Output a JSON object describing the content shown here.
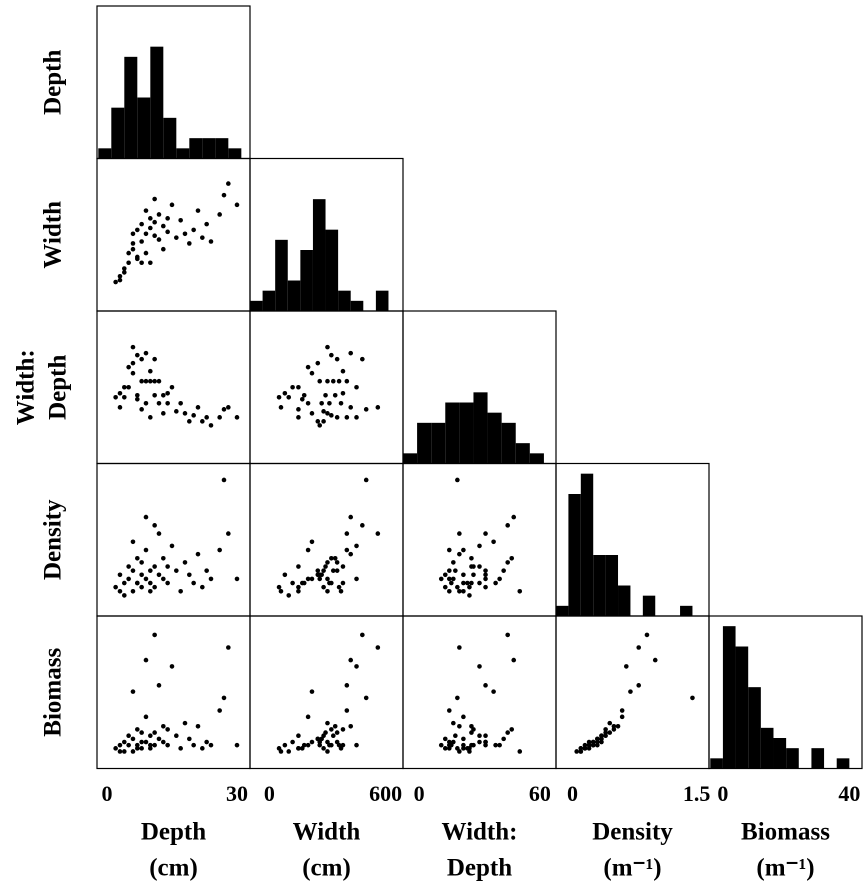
{
  "chart_data": {
    "type": "scatter_matrix",
    "hist_ylim": [
      0,
      15
    ],
    "variables": [
      {
        "row_label": [
          "Depth"
        ],
        "col_label": [
          "Depth",
          "(cm)"
        ],
        "lim": [
          -2.3,
          33
        ],
        "ticks": [
          0,
          30
        ],
        "hist": {
          "bins": [
            -2,
            1,
            4,
            7,
            10,
            13,
            16,
            19,
            22,
            25,
            28,
            31
          ],
          "counts": [
            1,
            5,
            10,
            6,
            11,
            4,
            1,
            2,
            2,
            2,
            1
          ]
        }
      },
      {
        "row_label": [
          "Width"
        ],
        "col_label": [
          "Width",
          "(cm)"
        ],
        "lim": [
          -100,
          690
        ],
        "ticks": [
          0,
          600
        ],
        "hist": {
          "bins": [
            -100,
            -35,
            30,
            95,
            160,
            225,
            290,
            355,
            420,
            485,
            550,
            615
          ],
          "counts": [
            1,
            2,
            7,
            3,
            6,
            11,
            8,
            2,
            1,
            0,
            2
          ]
        }
      },
      {
        "row_label": [
          "Width:",
          "Depth"
        ],
        "col_label": [
          "Width:",
          "Depth"
        ],
        "lim": [
          -8,
          68
        ],
        "ticks": [
          0,
          60
        ],
        "hist": {
          "bins": [
            -8,
            -1,
            6,
            13,
            20,
            27,
            34,
            41,
            48,
            55,
            62
          ],
          "counts": [
            1,
            4,
            4,
            6,
            6,
            7,
            5,
            4,
            2,
            1
          ]
        }
      },
      {
        "row_label": [
          "Density"
        ],
        "col_label": [
          "Density",
          "(m⁻¹)"
        ],
        "lim": [
          -0.2,
          1.65
        ],
        "ticks": [
          0,
          1.5
        ],
        "hist": {
          "bins": [
            -0.2,
            -0.05,
            0.1,
            0.25,
            0.4,
            0.55,
            0.7,
            0.85,
            1.0,
            1.15,
            1.3,
            1.45
          ],
          "counts": [
            1,
            12,
            14,
            6,
            6,
            3,
            0,
            2,
            0,
            0,
            1
          ]
        }
      },
      {
        "row_label": [
          "Biomass"
        ],
        "col_label": [
          "Biomass",
          "(m⁻¹)"
        ],
        "lim": [
          -4.4,
          44
        ],
        "ticks": [
          0,
          40
        ],
        "hist": {
          "bins": [
            -4,
            0,
            4,
            8,
            12,
            16,
            20,
            24,
            28,
            32,
            36,
            40
          ],
          "counts": [
            1,
            14,
            12,
            8,
            4,
            3,
            2,
            0,
            2,
            0,
            1
          ]
        }
      }
    ],
    "observations": [
      [
        2,
        50,
        25,
        0.15,
        2
      ],
      [
        3,
        80,
        27,
        0.3,
        3
      ],
      [
        4,
        120,
        30,
        0.2,
        4
      ],
      [
        5,
        200,
        40,
        0.25,
        3
      ],
      [
        5,
        150,
        30,
        0.4,
        6
      ],
      [
        6,
        300,
        50,
        0.1,
        1
      ],
      [
        6,
        250,
        42,
        0.35,
        5
      ],
      [
        7,
        180,
        26,
        0.2,
        3
      ],
      [
        7,
        320,
        46,
        0.5,
        8
      ],
      [
        8,
        150,
        19,
        0.15,
        2
      ],
      [
        8,
        260,
        33,
        0.3,
        4
      ],
      [
        8,
        350,
        44,
        0.45,
        7
      ],
      [
        9,
        300,
        33,
        0.25,
        4
      ],
      [
        9,
        200,
        22,
        0.6,
        12
      ],
      [
        10,
        380,
        38,
        0.2,
        3
      ],
      [
        10,
        330,
        33,
        0.35,
        6
      ],
      [
        10,
        150,
        15,
        0.1,
        2
      ],
      [
        11,
        290,
        26,
        0.4,
        7
      ],
      [
        11,
        360,
        33,
        0.15,
        3
      ],
      [
        12,
        270,
        22,
        0.3,
        5
      ],
      [
        12,
        400,
        33,
        0.8,
        22
      ],
      [
        13,
        340,
        26,
        0.5,
        9
      ],
      [
        13,
        220,
        17,
        0.25,
        4
      ],
      [
        14,
        310,
        22,
        0.2,
        3
      ],
      [
        15,
        450,
        30,
        0.65,
        28
      ],
      [
        16,
        280,
        18,
        0.35,
        6
      ],
      [
        17,
        370,
        22,
        0.1,
        2
      ],
      [
        18,
        300,
        17,
        0.45,
        10
      ],
      [
        19,
        250,
        13,
        0.3,
        5
      ],
      [
        20,
        320,
        16,
        0.2,
        3
      ],
      [
        21,
        420,
        20,
        0.55,
        9
      ],
      [
        22,
        280,
        13,
        0.15,
        2
      ],
      [
        23,
        350,
        15,
        0.35,
        4
      ],
      [
        24,
        260,
        11,
        0.25,
        3
      ],
      [
        26,
        400,
        15,
        0.6,
        14
      ],
      [
        27,
        500,
        19,
        1.45,
        18
      ],
      [
        28,
        560,
        20,
        0.8,
        34
      ],
      [
        30,
        450,
        15,
        0.25,
        3
      ],
      [
        4,
        100,
        25,
        0.05,
        1
      ],
      [
        6,
        220,
        37,
        0.7,
        20
      ],
      [
        9,
        420,
        47,
        1.0,
        30
      ],
      [
        11,
        480,
        44,
        0.9,
        38
      ],
      [
        3,
        60,
        20,
        0.1,
        1
      ],
      [
        14,
        380,
        27,
        0.4,
        8
      ],
      [
        7,
        170,
        24,
        0.2,
        2
      ]
    ]
  }
}
